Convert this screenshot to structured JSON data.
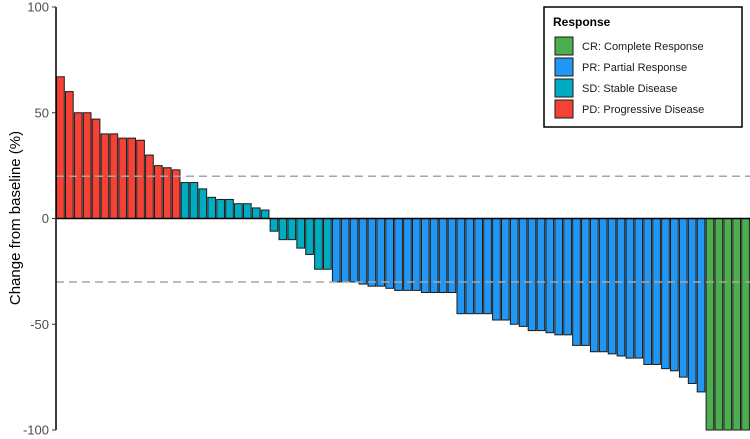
{
  "chart_data": {
    "type": "bar",
    "title": "",
    "xlabel": "",
    "ylabel": "Change from baseline (%)",
    "ylim": [
      -100,
      100
    ],
    "yticks": [
      100,
      50,
      0,
      -50,
      -100
    ],
    "reference_lines": [
      20,
      -30
    ],
    "grid": false,
    "legend": {
      "title": "Response",
      "position": "top-right",
      "entries": [
        {
          "key": "CR",
          "label": "CR: Complete Response",
          "color": "#4cae4f"
        },
        {
          "key": "PR",
          "label": "PR: Partial Response",
          "color": "#2196f3"
        },
        {
          "key": "SD",
          "label": "SD: Stable Disease",
          "color": "#00acc1"
        },
        {
          "key": "PD",
          "label": "PD: Progressive Disease",
          "color": "#f44336"
        }
      ]
    },
    "values": [
      67,
      60,
      50,
      50,
      47,
      40,
      40,
      38,
      38,
      37,
      30,
      25,
      24,
      23,
      17,
      17,
      14,
      10,
      9,
      9,
      7,
      7,
      5,
      4,
      -6,
      -10,
      -10,
      -14,
      -17,
      -24,
      -24,
      -30,
      -30,
      -30,
      -31,
      -32,
      -32,
      -33,
      -34,
      -34,
      -34,
      -35,
      -35,
      -35,
      -35,
      -45,
      -45,
      -45,
      -45,
      -48,
      -48,
      -50,
      -51,
      -53,
      -53,
      -54,
      -55,
      -55,
      -60,
      -60,
      -63,
      -63,
      -64,
      -65,
      -66,
      -66,
      -69,
      -69,
      -71,
      -72,
      -75,
      -78,
      -82,
      -100,
      -100,
      -100,
      -100,
      -100
    ],
    "response": [
      "PD",
      "PD",
      "PD",
      "PD",
      "PD",
      "PD",
      "PD",
      "PD",
      "PD",
      "PD",
      "PD",
      "PD",
      "PD",
      "PD",
      "SD",
      "SD",
      "SD",
      "SD",
      "SD",
      "SD",
      "SD",
      "SD",
      "SD",
      "SD",
      "SD",
      "SD",
      "SD",
      "SD",
      "SD",
      "SD",
      "SD",
      "PR",
      "PR",
      "PR",
      "PR",
      "PR",
      "PR",
      "PR",
      "PR",
      "PR",
      "PR",
      "PR",
      "PR",
      "PR",
      "PR",
      "PR",
      "PR",
      "PR",
      "PR",
      "PR",
      "PR",
      "PR",
      "PR",
      "PR",
      "PR",
      "PR",
      "PR",
      "PR",
      "PR",
      "PR",
      "PR",
      "PR",
      "PR",
      "PR",
      "PR",
      "PR",
      "PR",
      "PR",
      "PR",
      "PR",
      "PR",
      "PR",
      "PR",
      "CR",
      "CR",
      "CR",
      "CR",
      "CR"
    ]
  }
}
